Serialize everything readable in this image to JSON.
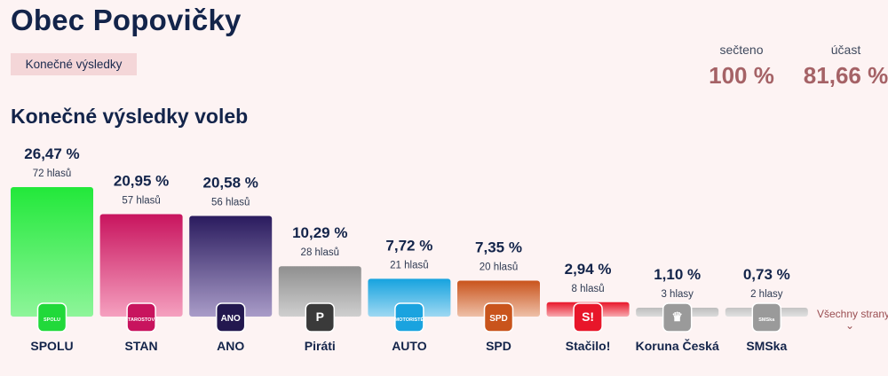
{
  "header": {
    "municipality": "Obec Popovičky",
    "status_badge": "Konečné výsledky"
  },
  "stats": {
    "counted_label": "sečteno",
    "counted_value": "100 %",
    "turnout_label": "účast",
    "turnout_value": "81,66 %"
  },
  "section_title": "Konečné výsledky voleb",
  "more_link": "Všechny strany",
  "more_icon": "chevron-down-icon",
  "chart_data": {
    "type": "bar",
    "title": "Konečné výsledky voleb",
    "xlabel": "",
    "ylabel": "",
    "ylim": [
      0,
      26.47
    ],
    "grid": false,
    "categories": [
      "SPOLU",
      "STAN",
      "ANO",
      "Piráti",
      "AUTO",
      "SPD",
      "Stačilo!",
      "Koruna Česká",
      "SMSka"
    ],
    "values": [
      26.47,
      20.95,
      20.58,
      10.29,
      7.72,
      7.35,
      2.94,
      1.1,
      0.73
    ],
    "percent_labels": [
      "26,47 %",
      "20,95 %",
      "20,58 %",
      "10,29 %",
      "7,72 %",
      "7,35 %",
      "2,94 %",
      "1,10 %",
      "0,73 %"
    ],
    "votes_labels": [
      "72 hlasů",
      "57 hlasů",
      "56 hlasů",
      "28 hlasů",
      "21 hlasů",
      "20 hlasů",
      "8 hlasů",
      "3 hlasy",
      "2 hlasy"
    ],
    "colors_top": [
      "#22e83a",
      "#c8145e",
      "#2a1b5e",
      "#8f8f8f",
      "#16a3df",
      "#c9541c",
      "#e8162a",
      "#bdbdbd",
      "#c4c4c4"
    ],
    "colors_bottom": [
      "#8ef59a",
      "#f5a0bf",
      "#a99cc8",
      "#cfcfcf",
      "#9ed8f2",
      "#eec0a8",
      "#f7a8ae",
      "#dcdcdc",
      "#e2e2e2"
    ],
    "logo_colors": [
      "#21d93a",
      "#c8145e",
      "#23184f",
      "#3a3a3a",
      "#1aa3df",
      "#c9541c",
      "#e8162a",
      "#9a9a9a",
      "#9a9a9a"
    ],
    "logo_texts": [
      "SPOLU",
      "STAROSTOVÉ",
      "ANO",
      "P",
      "MOTORISTÉ",
      "SPD",
      "S!",
      "♛",
      "SMSka"
    ]
  }
}
